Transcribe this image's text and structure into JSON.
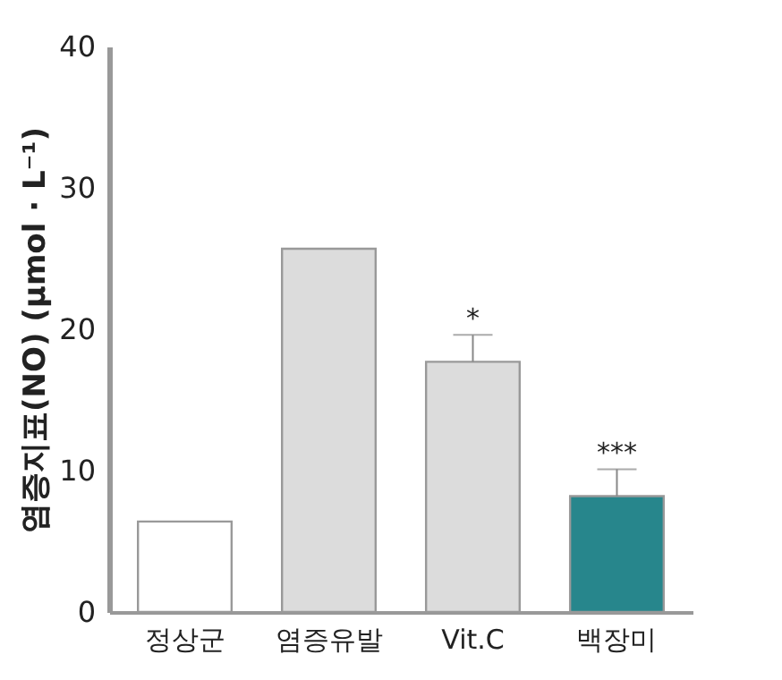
{
  "chart_data": {
    "type": "bar",
    "ylabel": "염증지표(NO) (μmol · L⁻¹)",
    "categories": [
      "정상군",
      "염증유발",
      "Vit.C",
      "백장미"
    ],
    "values": [
      6.4,
      25.7,
      17.7,
      8.2
    ],
    "colors": [
      "#ffffff",
      "#dcdcdc",
      "#dcdcdc",
      "#27868c"
    ],
    "errors": [
      null,
      null,
      [
        17.7,
        19.6
      ],
      [
        8.2,
        10.1
      ]
    ],
    "ylim": [
      0,
      40
    ],
    "yticks": [
      0,
      10,
      20,
      30,
      40
    ],
    "grid": false,
    "annotations": [
      {
        "text": "*",
        "x": "Vit.C",
        "y": 19.6
      },
      {
        "text": "***",
        "x": "백장미",
        "y": 10.1
      }
    ]
  }
}
